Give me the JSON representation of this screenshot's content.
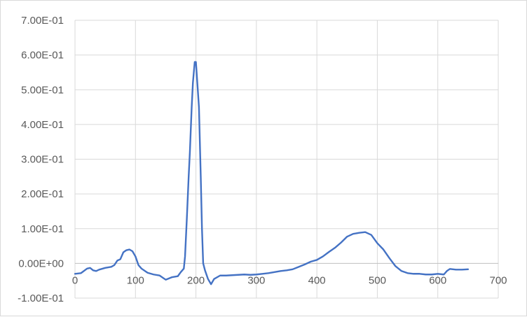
{
  "chart_data": {
    "type": "line",
    "title": "",
    "xlabel": "",
    "ylabel": "",
    "xlim": [
      0,
      700
    ],
    "ylim": [
      -0.1,
      0.7
    ],
    "x_ticks": [
      0,
      100,
      200,
      300,
      400,
      500,
      600,
      700
    ],
    "x_tick_labels": [
      "0",
      "100",
      "200",
      "300",
      "400",
      "500",
      "600",
      "700"
    ],
    "y_ticks": [
      0.7,
      0.6,
      0.5,
      0.4,
      0.3,
      0.2,
      0.1,
      0.0,
      -0.1
    ],
    "y_tick_labels": [
      "7.00E-01",
      "6.00E-01",
      "5.00E-01",
      "4.00E-01",
      "3.00E-01",
      "2.00E-01",
      "1.00E-01",
      "0.00E+00",
      "-1.00E-01"
    ],
    "grid": true,
    "legend": "none",
    "line_color": "#4472c4",
    "series": [
      {
        "x": [
          0,
          10,
          20,
          25,
          30,
          35,
          40,
          50,
          60,
          65,
          70,
          75,
          80,
          85,
          90,
          95,
          100,
          105,
          110,
          120,
          130,
          140,
          150,
          160,
          170,
          175,
          180,
          182,
          185,
          188,
          190,
          193,
          195,
          198,
          200,
          205,
          208,
          210,
          212,
          215,
          220,
          225,
          230,
          240,
          250,
          260,
          270,
          280,
          290,
          300,
          310,
          320,
          330,
          340,
          350,
          360,
          370,
          380,
          390,
          400,
          410,
          420,
          430,
          440,
          450,
          460,
          470,
          480,
          490,
          500,
          510,
          520,
          530,
          540,
          550,
          560,
          570,
          580,
          590,
          600,
          610,
          615,
          620,
          630,
          640,
          650
        ],
        "y": [
          -0.03,
          -0.028,
          -0.015,
          -0.013,
          -0.02,
          -0.022,
          -0.018,
          -0.013,
          -0.01,
          -0.005,
          0.008,
          0.012,
          0.032,
          0.038,
          0.04,
          0.035,
          0.02,
          -0.005,
          -0.015,
          -0.027,
          -0.032,
          -0.035,
          -0.047,
          -0.04,
          -0.037,
          -0.025,
          -0.015,
          0.02,
          0.13,
          0.25,
          0.32,
          0.45,
          0.52,
          0.58,
          0.58,
          0.45,
          0.25,
          0.1,
          0.0,
          -0.02,
          -0.045,
          -0.06,
          -0.045,
          -0.035,
          -0.035,
          -0.034,
          -0.033,
          -0.032,
          -0.033,
          -0.032,
          -0.03,
          -0.028,
          -0.025,
          -0.022,
          -0.02,
          -0.017,
          -0.01,
          -0.003,
          0.005,
          0.01,
          0.02,
          0.033,
          0.045,
          0.06,
          0.077,
          0.085,
          0.088,
          0.09,
          0.082,
          0.058,
          0.04,
          0.015,
          -0.008,
          -0.022,
          -0.028,
          -0.03,
          -0.03,
          -0.032,
          -0.032,
          -0.03,
          -0.032,
          -0.022,
          -0.016,
          -0.018,
          -0.018,
          -0.017
        ]
      }
    ]
  }
}
